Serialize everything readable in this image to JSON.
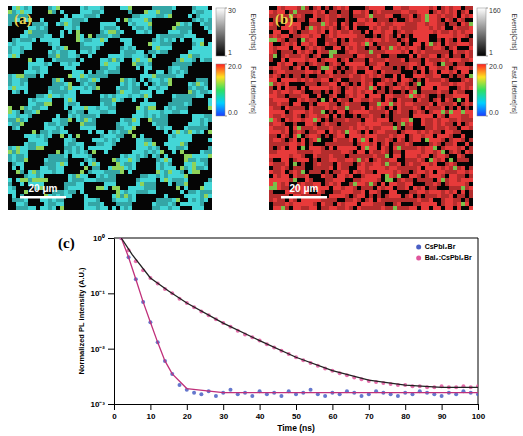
{
  "chart_data": [
    {
      "type": "image",
      "panel_label": "(a)",
      "scale_bar": "20 μm",
      "color": "#3cc0c0",
      "colorbars": [
        {
          "label": "Events[Cnts]",
          "range": [
            1,
            30
          ],
          "ticks": [
            1,
            30
          ],
          "color": "gray"
        },
        {
          "label": "Fast Lifetime[ns]",
          "range": [
            0,
            20
          ],
          "ticks": [
            {
              "value": 0,
              "label": "0.0"
            },
            {
              "value": 20,
              "label": "20.0"
            }
          ],
          "color": "rainbow"
        }
      ]
    },
    {
      "type": "image",
      "panel_label": "(b)",
      "scale_bar": "20 μm",
      "color": "#c83232",
      "colorbars": [
        {
          "label": "Events[Cnts]",
          "range": [
            1,
            160
          ],
          "ticks": [
            1,
            160
          ],
          "color": "gray"
        },
        {
          "label": "Fast Lifetime[ns]",
          "range": [
            0,
            20
          ],
          "ticks": [
            {
              "value": 0,
              "label": "0.0"
            },
            {
              "value": 20,
              "label": "20.0"
            }
          ],
          "color": "rainbow"
        }
      ]
    },
    {
      "type": "scatter",
      "panel_label": "(c)",
      "x_label": "Time (ns)",
      "y_label": "Normalized PL intensity (A.U.)",
      "log": "y",
      "legend": "top-right",
      "xlim": [
        0,
        100
      ],
      "xticks": [
        0,
        10,
        20,
        30,
        40,
        50,
        60,
        70,
        80,
        90,
        100
      ],
      "ylim": [
        0.001,
        1
      ],
      "yticks": [
        {
          "value": 0.001,
          "label": "10⁻³"
        },
        {
          "value": 0.01,
          "label": "10⁻²"
        },
        {
          "value": 0.1,
          "label": "10⁻¹"
        },
        {
          "value": 1,
          "label": "10⁰"
        }
      ],
      "series": [
        {
          "name": "CsPbI₂Br",
          "type": "scatter",
          "marker": "circle",
          "color": "#4a5fc4",
          "x": [
            2,
            4,
            6,
            8,
            10,
            12,
            14,
            16,
            18,
            20,
            22,
            24,
            26,
            28,
            30,
            32,
            34,
            36,
            38,
            40,
            42,
            44,
            46,
            48,
            50,
            52,
            54,
            56,
            58,
            60,
            62,
            64,
            66,
            68,
            70,
            72,
            74,
            76,
            78,
            80,
            82,
            84,
            86,
            88,
            90,
            92,
            94,
            96,
            98,
            100
          ],
          "values": [
            1.0,
            0.45,
            0.18,
            0.07,
            0.03,
            0.013,
            0.006,
            0.0035,
            0.0022,
            0.0018,
            0.0016,
            0.0015,
            0.0017,
            0.0014,
            0.0016,
            0.0018,
            0.0015,
            0.0016,
            0.0014,
            0.0017,
            0.0015,
            0.0016,
            0.0014,
            0.0017,
            0.0015,
            0.0016,
            0.0018,
            0.0015,
            0.0014,
            0.0016,
            0.0015,
            0.0017,
            0.0016,
            0.0014,
            0.0015,
            0.0017,
            0.0016,
            0.0015,
            0.0014,
            0.0016,
            0.0015,
            0.0017,
            0.0016,
            0.0015,
            0.0014,
            0.0016,
            0.0015,
            0.0017,
            0.0016,
            0.0015
          ]
        },
        {
          "name": "BaI₂:CsPbI₂Br",
          "type": "scatter",
          "marker": "circle",
          "color": "#e0559c",
          "x": [
            2,
            4,
            6,
            8,
            10,
            12,
            14,
            16,
            18,
            20,
            22,
            24,
            26,
            28,
            30,
            32,
            34,
            36,
            38,
            40,
            42,
            44,
            46,
            48,
            50,
            52,
            54,
            56,
            58,
            60,
            62,
            64,
            66,
            68,
            70,
            72,
            74,
            76,
            78,
            80,
            82,
            84,
            86,
            88,
            90,
            92,
            94,
            96,
            98,
            100
          ],
          "values": [
            1.0,
            0.6,
            0.38,
            0.26,
            0.19,
            0.15,
            0.12,
            0.1,
            0.08,
            0.067,
            0.056,
            0.047,
            0.04,
            0.034,
            0.029,
            0.025,
            0.021,
            0.018,
            0.016,
            0.014,
            0.012,
            0.0105,
            0.0092,
            0.008,
            0.007,
            0.0062,
            0.0055,
            0.0049,
            0.0044,
            0.004,
            0.0036,
            0.0033,
            0.003,
            0.0028,
            0.0026,
            0.0025,
            0.0024,
            0.0023,
            0.0022,
            0.0022,
            0.0021,
            0.0021,
            0.002,
            0.002,
            0.0021,
            0.002,
            0.002,
            0.0021,
            0.002,
            0.0021
          ]
        },
        {
          "type": "line",
          "line_style": "solid",
          "color": "#c0307a",
          "x": [
            2,
            4,
            6,
            8,
            10,
            12,
            14,
            16,
            20,
            30,
            50,
            100
          ],
          "values": [
            1.0,
            0.45,
            0.18,
            0.07,
            0.03,
            0.013,
            0.006,
            0.0035,
            0.0019,
            0.0016,
            0.0016,
            0.0016
          ]
        },
        {
          "type": "line",
          "line_style": "solid",
          "color": "#222222",
          "x": [
            2,
            5,
            10,
            15,
            20,
            30,
            40,
            50,
            60,
            70,
            80,
            90,
            100
          ],
          "values": [
            1.0,
            0.5,
            0.19,
            0.11,
            0.067,
            0.029,
            0.014,
            0.007,
            0.004,
            0.0027,
            0.0022,
            0.002,
            0.002
          ]
        }
      ]
    }
  ]
}
